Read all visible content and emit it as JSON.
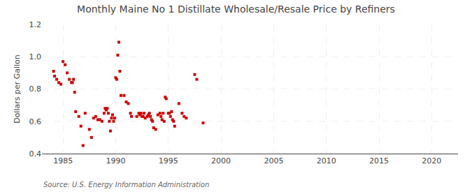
{
  "chart_data": {
    "type": "scatter",
    "title": "Monthly Maine No 1 Distillate Wholesale/Resale Price by Refiners",
    "ylabel": "Dollars per Gallon",
    "annotations": [
      "Source: U.S. Energy Information Administration"
    ],
    "color": "#cc0000",
    "marker": "square",
    "grid": true,
    "xlim": [
      1983.0,
      2022.5
    ],
    "ylim": [
      0.4,
      1.2
    ],
    "xticks": [
      1985,
      1990,
      1995,
      2000,
      2005,
      2010,
      2015,
      2020
    ],
    "yticks": [
      0.4,
      0.6,
      0.8,
      {
        "value": 1.0,
        "label": "1.0"
      },
      1.2
    ],
    "x": [
      1984.1,
      1984.2,
      1984.4,
      1984.6,
      1984.8,
      1985.0,
      1985.2,
      1985.4,
      1985.6,
      1985.8,
      1985.9,
      1986.0,
      1986.1,
      1986.2,
      1986.5,
      1986.7,
      1986.9,
      1987.1,
      1987.5,
      1987.7,
      1987.9,
      1988.1,
      1988.3,
      1988.5,
      1988.7,
      1988.9,
      1989.0,
      1989.1,
      1989.2,
      1989.3,
      1989.4,
      1989.5,
      1989.6,
      1989.7,
      1989.8,
      1989.9,
      1990.0,
      1990.1,
      1990.2,
      1990.3,
      1990.4,
      1990.5,
      1990.8,
      1991.0,
      1991.2,
      1991.4,
      1991.5,
      1992.0,
      1992.2,
      1992.3,
      1992.4,
      1992.5,
      1992.6,
      1992.7,
      1992.8,
      1993.0,
      1993.1,
      1993.2,
      1993.3,
      1993.4,
      1993.5,
      1993.6,
      1993.8,
      1994.0,
      1994.2,
      1994.3,
      1994.4,
      1994.5,
      1994.6,
      1994.7,
      1994.8,
      1995.0,
      1995.1,
      1995.2,
      1995.3,
      1995.4,
      1995.5,
      1995.6,
      1996.0,
      1996.3,
      1996.5,
      1996.7,
      1997.5,
      1997.7,
      1998.3
    ],
    "values": [
      0.91,
      0.88,
      0.86,
      0.84,
      0.83,
      0.97,
      0.95,
      0.9,
      0.86,
      0.84,
      0.84,
      0.86,
      0.78,
      0.66,
      0.63,
      0.57,
      0.45,
      0.65,
      0.55,
      0.5,
      0.62,
      0.63,
      0.61,
      0.61,
      0.6,
      0.65,
      0.68,
      0.67,
      0.68,
      0.65,
      0.6,
      0.54,
      0.62,
      0.64,
      0.6,
      0.62,
      0.87,
      0.86,
      1.01,
      1.09,
      0.91,
      0.76,
      0.76,
      0.72,
      0.71,
      0.65,
      0.63,
      0.63,
      0.65,
      0.64,
      0.65,
      0.63,
      0.63,
      0.65,
      0.62,
      0.63,
      0.64,
      0.65,
      0.63,
      0.61,
      0.6,
      0.56,
      0.55,
      0.64,
      0.65,
      0.63,
      0.61,
      0.65,
      0.6,
      0.75,
      0.74,
      0.65,
      0.65,
      0.63,
      0.66,
      0.61,
      0.6,
      0.57,
      0.71,
      0.65,
      0.63,
      0.62,
      0.89,
      0.86,
      0.59
    ]
  }
}
